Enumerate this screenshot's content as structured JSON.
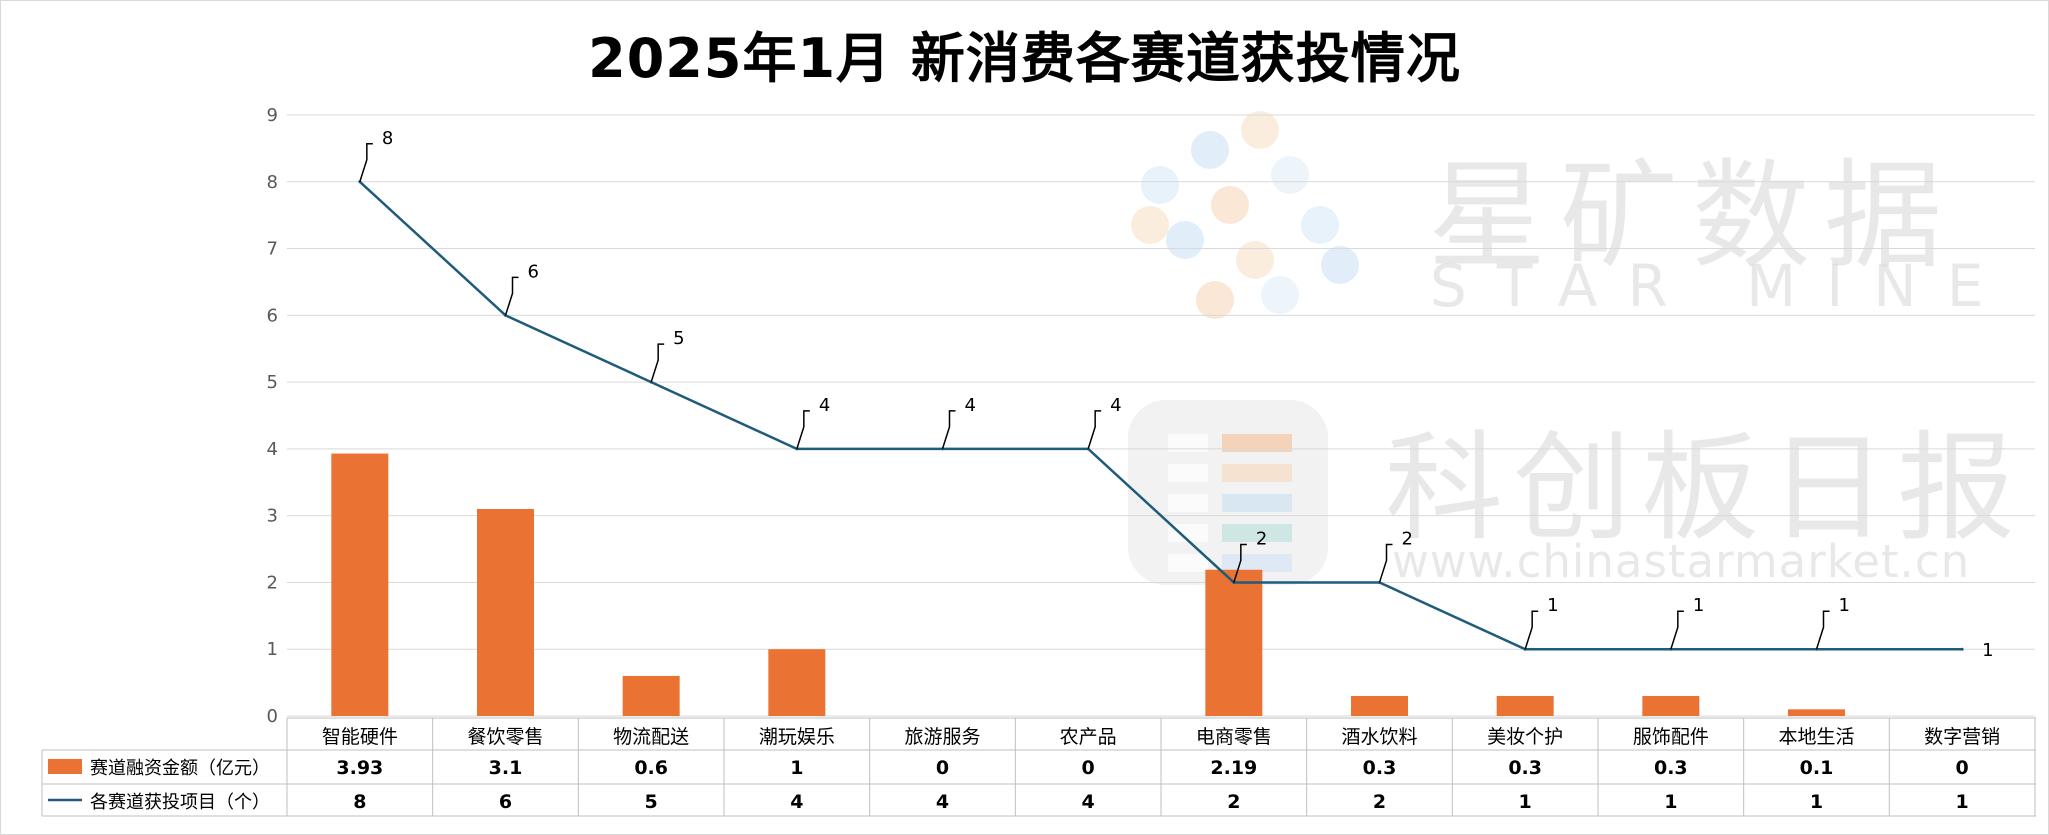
{
  "chart_data": {
    "type": "bar",
    "title": "2025年1月 新消费各赛道获投情况",
    "categories": [
      "智能硬件",
      "餐饮零售",
      "物流配送",
      "潮玩娱乐",
      "旅游服务",
      "农产品",
      "电商零售",
      "酒水饮料",
      "美妆个护",
      "服饰配件",
      "本地生活",
      "数字营销"
    ],
    "ylim": [
      0,
      9
    ],
    "yticks": [
      "0",
      "1",
      "2",
      "3",
      "4",
      "5",
      "6",
      "7",
      "8",
      "9"
    ],
    "grid": true,
    "series": [
      {
        "name": "赛道融资金额（亿元）",
        "type": "bar",
        "color": "#ea7233",
        "values": [
          3.93,
          3.1,
          0.6,
          1,
          0,
          0,
          2.19,
          0.3,
          0.3,
          0.3,
          0.1,
          0
        ],
        "table_labels": [
          "3.93",
          "3.1",
          "0.6",
          "1",
          "0",
          "0",
          "2.19",
          "0.3",
          "0.3",
          "0.3",
          "0.1",
          "0"
        ]
      },
      {
        "name": "各赛道获投项目（个）",
        "type": "line",
        "color": "#1f5b7a",
        "values": [
          8,
          6,
          5,
          4,
          4,
          4,
          2,
          2,
          1,
          1,
          1,
          1
        ],
        "table_labels": [
          "8",
          "6",
          "5",
          "4",
          "4",
          "4",
          "2",
          "2",
          "1",
          "1",
          "1",
          "1"
        ]
      }
    ]
  },
  "watermark": {
    "brand_cn": "星矿数据",
    "brand_en": "STAR MINE",
    "paper_cn": "科创板日报",
    "url": "www.chinastarmarket.cn"
  }
}
